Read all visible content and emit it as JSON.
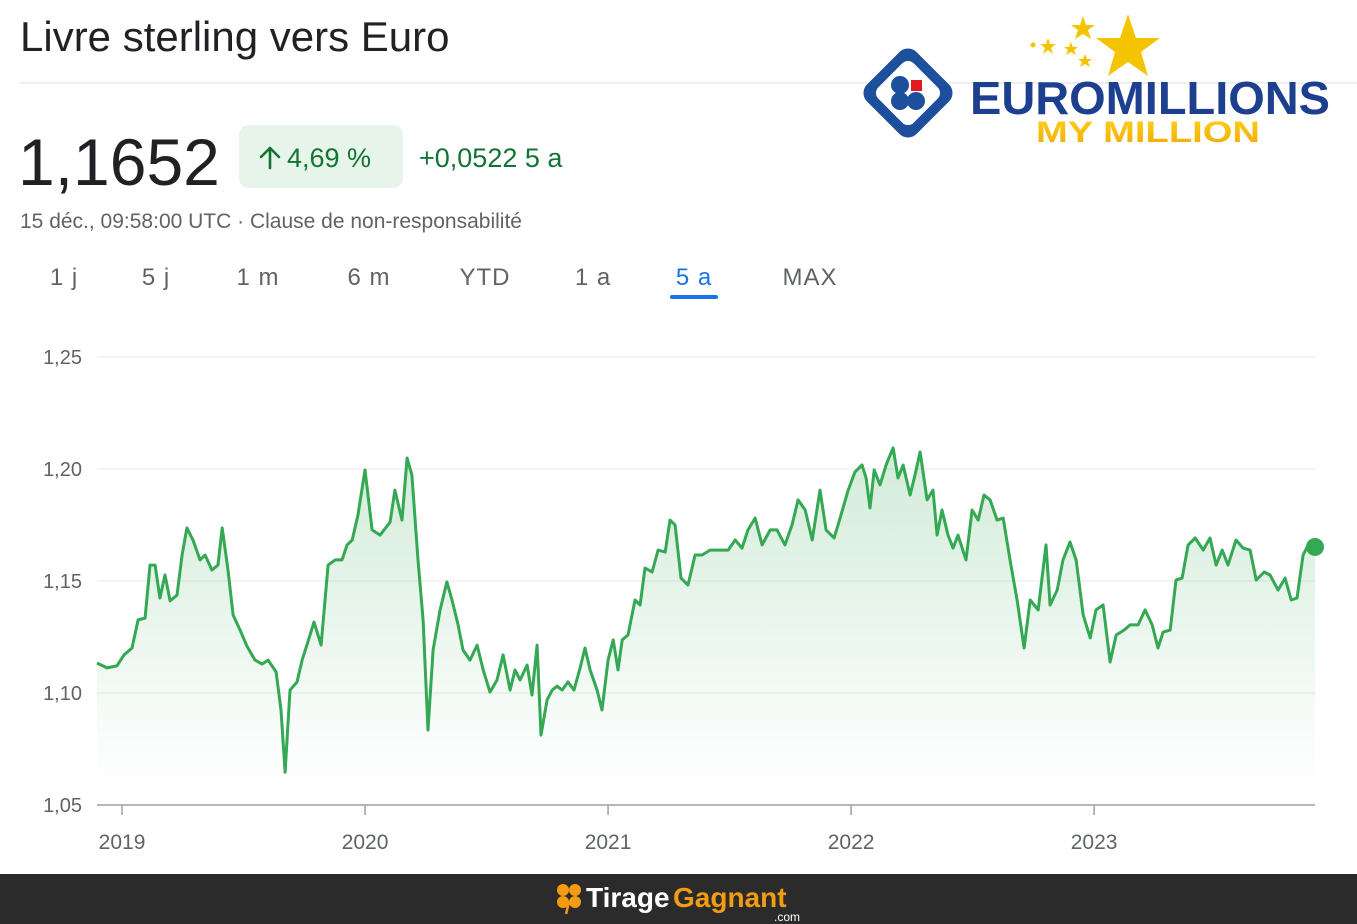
{
  "header": {
    "title": "Livre sterling vers Euro",
    "price": "1,1652",
    "change_pct": "4,69 %",
    "change_abs": "+0,0522 5 a",
    "timestamp": "15 déc., 09:58:00 UTC · Clause de non-responsabilité"
  },
  "tabs": [
    "1 j",
    "5 j",
    "1 m",
    "6 m",
    "YTD",
    "1 a",
    "5 a",
    "MAX"
  ],
  "active_tab": 6,
  "logo": {
    "brand": "EUROMILLIONS",
    "tagline": "MY MILLION"
  },
  "footer": {
    "brand_first": "Tirage",
    "brand_second": "Gagnant",
    "suffix": ".com"
  },
  "chart_data": {
    "type": "line",
    "color": "#34a853",
    "x": [
      2018.897,
      2018.938,
      2018.979,
      2019.008,
      2019.041,
      2019.066,
      2019.095,
      2019.115,
      2019.136,
      2019.156,
      2019.177,
      2019.198,
      2019.226,
      2019.247,
      2019.267,
      2019.292,
      2019.321,
      2019.342,
      2019.37,
      2019.395,
      2019.412,
      2019.436,
      2019.457,
      2019.486,
      2019.514,
      2019.547,
      2019.576,
      2019.601,
      2019.634,
      2019.654,
      2019.671,
      2019.691,
      2019.72,
      2019.741,
      2019.765,
      2019.79,
      2019.819,
      2019.848,
      2019.877,
      2019.905,
      2019.926,
      2019.947,
      2019.971,
      2020.0,
      2020.029,
      2020.062,
      2020.103,
      2020.123,
      2020.152,
      2020.173,
      2020.193,
      2020.218,
      2020.239,
      2020.259,
      2020.28,
      2020.309,
      2020.337,
      2020.358,
      2020.383,
      2020.403,
      2020.432,
      2020.461,
      2020.486,
      2020.514,
      2020.543,
      2020.568,
      2020.597,
      2020.617,
      2020.638,
      2020.667,
      2020.687,
      2020.708,
      2020.724,
      2020.749,
      2020.77,
      2020.79,
      2020.811,
      2020.835,
      2020.86,
      2020.885,
      2020.905,
      2020.926,
      2020.955,
      2020.975,
      2021.0,
      2021.021,
      2021.041,
      2021.058,
      2021.082,
      2021.111,
      2021.132,
      2021.152,
      2021.181,
      2021.206,
      2021.235,
      2021.255,
      2021.276,
      2021.3,
      2021.329,
      2021.358,
      2021.387,
      2021.42,
      2021.453,
      2021.494,
      2021.523,
      2021.551,
      2021.576,
      2021.605,
      2021.634,
      2021.667,
      2021.695,
      2021.728,
      2021.757,
      2021.782,
      2021.811,
      2021.84,
      2021.872,
      2021.897,
      2021.93,
      2021.955,
      2021.988,
      2022.016,
      2022.045,
      2022.062,
      2022.078,
      2022.095,
      2022.119,
      2022.144,
      2022.173,
      2022.193,
      2022.214,
      2022.243,
      2022.263,
      2022.284,
      2022.313,
      2022.337,
      2022.354,
      2022.374,
      2022.399,
      2022.42,
      2022.44,
      2022.473,
      2022.498,
      2022.523,
      2022.547,
      2022.572,
      2022.601,
      2022.626,
      2022.654,
      2022.683,
      2022.712,
      2022.737,
      2022.77,
      2022.802,
      2022.819,
      2022.848,
      2022.872,
      2022.901,
      2022.926,
      2022.955,
      2022.984,
      2023.008,
      2023.037,
      2023.066,
      2023.091,
      2023.123,
      2023.148,
      2023.181,
      2023.21,
      2023.239,
      2023.263,
      2023.284,
      2023.313,
      2023.337,
      2023.362,
      2023.387,
      2023.416,
      2023.449,
      2023.477,
      2023.502,
      2023.527,
      2023.551,
      2023.584,
      2023.613,
      2023.642,
      2023.667,
      2023.7,
      2023.724,
      2023.757,
      2023.786,
      2023.811,
      2023.835,
      2023.86,
      2023.881,
      2023.909
    ],
    "values": [
      1.1134,
      1.1112,
      1.1121,
      1.117,
      1.1201,
      1.1326,
      1.1335,
      1.1571,
      1.1571,
      1.1424,
      1.1527,
      1.1411,
      1.1437,
      1.1616,
      1.1737,
      1.1683,
      1.1594,
      1.1616,
      1.1549,
      1.1571,
      1.1737,
      1.1549,
      1.1348,
      1.1281,
      1.121,
      1.1147,
      1.1129,
      1.1147,
      1.1094,
      1.0924,
      1.0647,
      1.1013,
      1.1049,
      1.1147,
      1.1228,
      1.1317,
      1.1214,
      1.1571,
      1.1594,
      1.1594,
      1.1661,
      1.1683,
      1.1795,
      1.1996,
      1.1728,
      1.1705,
      1.1763,
      1.1906,
      1.1772,
      1.2049,
      1.1973,
      1.1594,
      1.1326,
      1.0835,
      1.1192,
      1.1371,
      1.1496,
      1.1415,
      1.1304,
      1.1192,
      1.1147,
      1.1214,
      1.1103,
      1.1004,
      1.1058,
      1.117,
      1.1013,
      1.1103,
      1.1058,
      1.1125,
      1.0991,
      1.1214,
      1.0812,
      1.0969,
      1.1013,
      1.1031,
      1.1013,
      1.1049,
      1.1013,
      1.1112,
      1.1201,
      1.1103,
      1.1013,
      1.0924,
      1.1147,
      1.1237,
      1.1103,
      1.1237,
      1.1259,
      1.1415,
      1.1393,
      1.1558,
      1.154,
      1.1638,
      1.1629,
      1.1772,
      1.175,
      1.1513,
      1.1482,
      1.1616,
      1.1616,
      1.1638,
      1.1638,
      1.1638,
      1.1683,
      1.1647,
      1.1728,
      1.1781,
      1.1661,
      1.1728,
      1.1728,
      1.1661,
      1.175,
      1.1862,
      1.1817,
      1.1683,
      1.1906,
      1.1728,
      1.1692,
      1.1781,
      1.1906,
      1.1987,
      1.2018,
      1.196,
      1.1826,
      1.1996,
      1.1929,
      1.2018,
      1.2094,
      1.196,
      1.2018,
      1.1884,
      1.1973,
      1.2076,
      1.1862,
      1.1906,
      1.1705,
      1.1817,
      1.1705,
      1.1647,
      1.1705,
      1.1594,
      1.1817,
      1.1772,
      1.1884,
      1.1862,
      1.1772,
      1.1781,
      1.1594,
      1.1415,
      1.1201,
      1.1415,
      1.1371,
      1.1661,
      1.1393,
      1.146,
      1.1594,
      1.1674,
      1.1594,
      1.1348,
      1.1246,
      1.1371,
      1.1393,
      1.1138,
      1.1259,
      1.1281,
      1.1304,
      1.1304,
      1.1371,
      1.1304,
      1.1201,
      1.1272,
      1.1281,
      1.1504,
      1.1513,
      1.1661,
      1.1692,
      1.1638,
      1.1692,
      1.1571,
      1.1638,
      1.1571,
      1.1683,
      1.1647,
      1.1638,
      1.1504,
      1.154,
      1.1527,
      1.146,
      1.1513,
      1.1415,
      1.1424,
      1.1616,
      1.1661,
      1.1652
    ],
    "xlim": [
      2018.897,
      2023.909
    ],
    "xticks": [
      2019,
      2020,
      2021,
      2022,
      2023
    ],
    "ylim": [
      1.05,
      1.25
    ],
    "yticks": [
      {
        "value": 1.05,
        "label": "1,05"
      },
      {
        "value": 1.1,
        "label": "1,10"
      },
      {
        "value": 1.15,
        "label": "1,15"
      },
      {
        "value": 1.2,
        "label": "1,20"
      },
      {
        "value": 1.25,
        "label": "1,25"
      }
    ],
    "grid": true
  }
}
